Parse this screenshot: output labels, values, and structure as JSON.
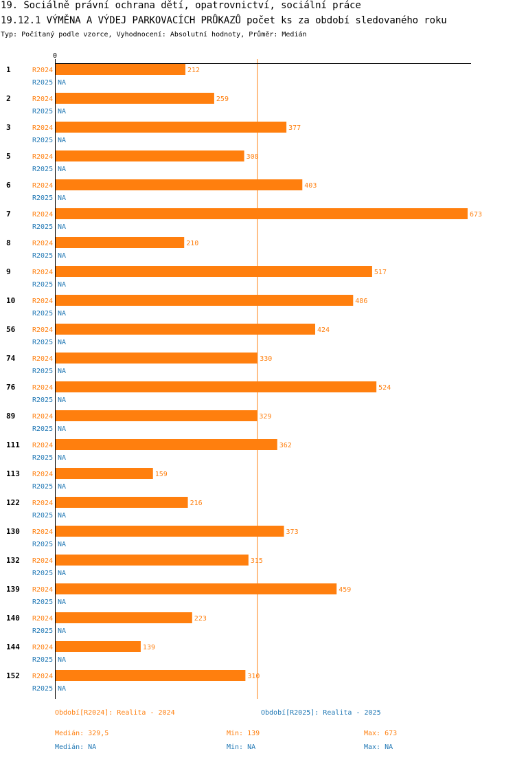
{
  "header": {
    "title_line1": "19. Sociálně právní ochrana dětí, opatrovnictví, sociální práce",
    "title_line2": "19.12.1 VÝMĚNA A VÝDEJ PARKOVACÍCH PRŮKAZŮ počet ks za období sledovaného roku",
    "subtitle": "Typ: Počítaný podle vzorce, Vyhodnocení: Absolutní hodnoty, Průměr: Medián"
  },
  "colors": {
    "r2024": "#ff7f0e",
    "r2025": "#1f77b4",
    "axis": "#000000"
  },
  "chart_data": {
    "type": "bar",
    "orientation": "horizontal",
    "x_tick_label": "0",
    "xlim": [
      0,
      673
    ],
    "categories": [
      "1",
      "2",
      "3",
      "5",
      "6",
      "7",
      "8",
      "9",
      "10",
      "56",
      "74",
      "76",
      "89",
      "111",
      "113",
      "122",
      "130",
      "132",
      "139",
      "140",
      "144",
      "152"
    ],
    "series": [
      {
        "name": "R2024",
        "values": [
          212,
          259,
          377,
          308,
          403,
          673,
          210,
          517,
          486,
          424,
          330,
          524,
          329,
          362,
          159,
          216,
          373,
          315,
          459,
          223,
          139,
          310
        ]
      },
      {
        "name": "R2025",
        "values": [
          null,
          null,
          null,
          null,
          null,
          null,
          null,
          null,
          null,
          null,
          null,
          null,
          null,
          null,
          null,
          null,
          null,
          null,
          null,
          null,
          null,
          null
        ],
        "na_label": "NA"
      }
    ],
    "reference_line": {
      "label": "Medián",
      "value": 329.5
    }
  },
  "legend": {
    "r2024": "Období[R2024]: Realita - 2024",
    "r2025": "Období[R2025]: Realita - 2025"
  },
  "stats": {
    "r2024": {
      "median": "Medián: 329,5",
      "min": "Min: 139",
      "max": "Max: 673"
    },
    "r2025": {
      "median": "Medián: NA",
      "min": "Min: NA",
      "max": "Max: NA"
    }
  }
}
